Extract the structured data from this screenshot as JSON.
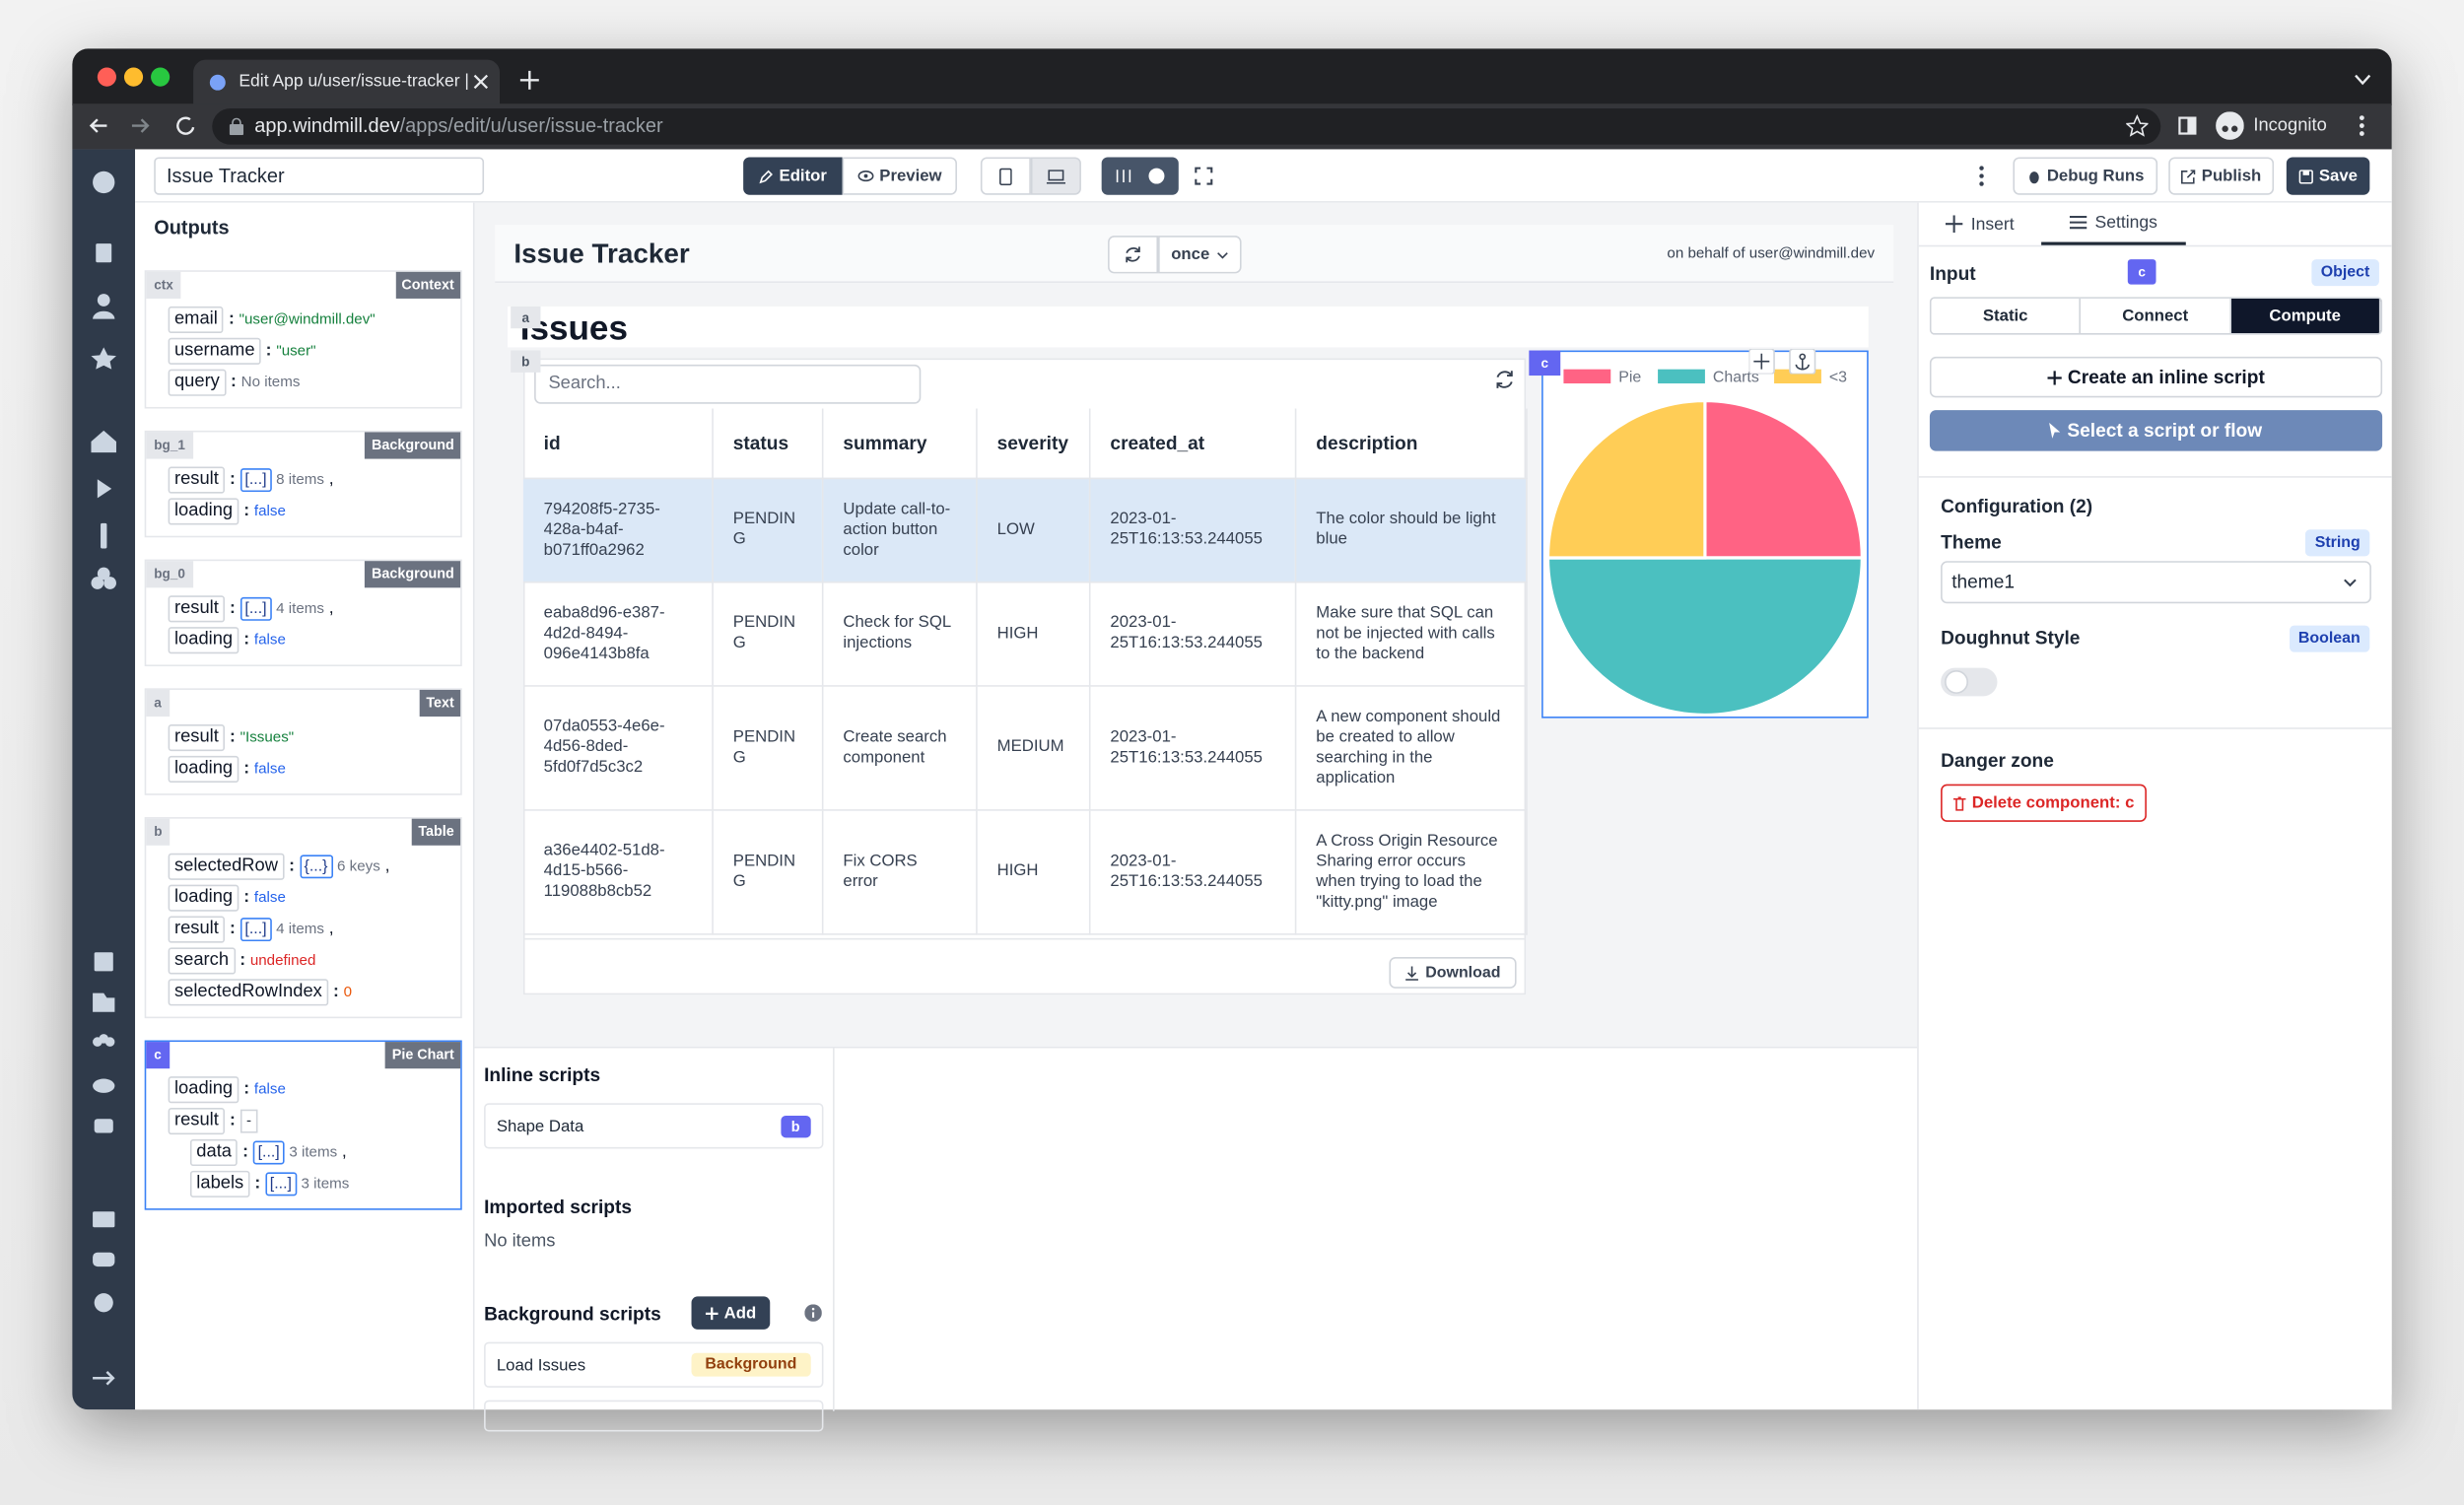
{
  "browser": {
    "tab_title": "Edit App u/user/issue-tracker |",
    "url_host": "app.windmill.dev",
    "url_path": "/apps/edit/u/user/issue-tracker",
    "profile": "Incognito"
  },
  "topbar": {
    "app_name": "Issue Tracker",
    "editor": "Editor",
    "preview": "Preview",
    "debug_runs": "Debug Runs",
    "publish": "Publish",
    "save": "Save"
  },
  "outputs": {
    "title": "Outputs",
    "separator": ":",
    "panels": [
      {
        "id": "ctx",
        "kind": "Context",
        "rows": [
          {
            "key": "email",
            "value": "\"user@windmill.dev\"",
            "type": "string"
          },
          {
            "key": "username",
            "value": "\"user\"",
            "type": "string"
          },
          {
            "key": "query",
            "value": "No items",
            "type": "empty"
          }
        ]
      },
      {
        "id": "bg_1",
        "kind": "Background",
        "rows": [
          {
            "key": "result",
            "badge": "[...]",
            "value": "8 items",
            "type": "count",
            "suffix": ","
          },
          {
            "key": "loading",
            "value": "false",
            "type": "boolean"
          }
        ]
      },
      {
        "id": "bg_0",
        "kind": "Background",
        "rows": [
          {
            "key": "result",
            "badge": "[...]",
            "value": "4 items",
            "type": "count",
            "suffix": ","
          },
          {
            "key": "loading",
            "value": "false",
            "type": "boolean"
          }
        ]
      },
      {
        "id": "a",
        "kind": "Text",
        "rows": [
          {
            "key": "result",
            "value": "\"Issues\"",
            "type": "string"
          },
          {
            "key": "loading",
            "value": "false",
            "type": "boolean"
          }
        ]
      },
      {
        "id": "b",
        "kind": "Table",
        "rows": [
          {
            "key": "selectedRow",
            "badge": "{...}",
            "value": "6 keys",
            "type": "count",
            "suffix": ","
          },
          {
            "key": "loading",
            "value": "false",
            "type": "boolean"
          },
          {
            "key": "result",
            "badge": "[...]",
            "value": "4 items",
            "type": "count",
            "suffix": ","
          },
          {
            "key": "search",
            "value": "undefined",
            "type": "undefined"
          },
          {
            "key": "selectedRowIndex",
            "value": "0",
            "type": "number"
          }
        ]
      },
      {
        "id": "c",
        "kind": "Pie Chart",
        "selected": true,
        "rows": [
          {
            "key": "loading",
            "value": "false",
            "type": "boolean"
          },
          {
            "key": "result",
            "value": "-",
            "type": "plain",
            "children": [
              {
                "key": "data",
                "badge": "[...]",
                "value": "3 items",
                "type": "count",
                "suffix": ","
              },
              {
                "key": "labels",
                "badge": "[...]",
                "value": "3 items",
                "type": "count"
              }
            ]
          }
        ]
      }
    ]
  },
  "canvas": {
    "title": "Issue Tracker",
    "refresh_mode": "once",
    "on_behalf": "on behalf of user@windmill.dev",
    "text_component": {
      "id": "a",
      "text": "Issues"
    },
    "table": {
      "id": "b",
      "search_placeholder": "Search...",
      "download": "Download",
      "selected_row": 0,
      "columns": [
        "id",
        "status",
        "summary",
        "severity",
        "created_at",
        "description"
      ],
      "rows": [
        [
          "794208f5-2735-428a-b4af-b071ff0a2962",
          "PENDING",
          "Update call-to-action button color",
          "LOW",
          "2023-01-25T16:13:53.244055",
          "The color should be light blue"
        ],
        [
          "eaba8d96-e387-4d2d-8494-096e4143b8fa",
          "PENDING",
          "Check for SQL injections",
          "HIGH",
          "2023-01-25T16:13:53.244055",
          "Make sure that SQL can not be injected with calls to the backend"
        ],
        [
          "07da0553-4e6e-4d56-8ded-5fd0f7d5c3c2",
          "PENDING",
          "Create search component",
          "MEDIUM",
          "2023-01-25T16:13:53.244055",
          "A new component should be created to allow searching in the application"
        ],
        [
          "a36e4402-51d8-4d15-b566-119088b8cb52",
          "PENDING",
          "Fix CORS error",
          "HIGH",
          "2023-01-25T16:13:53.244055",
          "A Cross Origin Resource Sharing error occurs when trying to load the \"kitty.png\" image"
        ]
      ]
    }
  },
  "chart_data": {
    "type": "pie",
    "component_id": "c",
    "categories": [
      "Pie",
      "Charts",
      "<3"
    ],
    "values": [
      25,
      50,
      25
    ],
    "colors": [
      "#ff6384",
      "#4bc0c0",
      "#ffcd56"
    ]
  },
  "scripts": {
    "inline": {
      "title": "Inline scripts",
      "items": [
        {
          "name": "Shape Data",
          "badge": "b"
        }
      ]
    },
    "imported": {
      "title": "Imported scripts",
      "empty": "No items"
    },
    "background": {
      "title": "Background scripts",
      "add": "Add",
      "items": [
        {
          "name": "Load Issues",
          "badge": "Background"
        }
      ]
    }
  },
  "settings": {
    "tabs": [
      "Insert",
      "Settings"
    ],
    "active_tab": 1,
    "input_label": "Input",
    "component_id": "c",
    "input_type": "Object",
    "modes": [
      "Static",
      "Connect",
      "Compute"
    ],
    "active_mode": 2,
    "create_inline": "Create an inline script",
    "select_script": "Select a script or flow",
    "configuration": "Configuration (2)",
    "theme": {
      "label": "Theme",
      "type": "String",
      "value": "theme1"
    },
    "doughnut": {
      "label": "Doughnut Style",
      "type": "Boolean",
      "value": false
    },
    "danger_zone": "Danger zone",
    "delete": "Delete component: c"
  }
}
